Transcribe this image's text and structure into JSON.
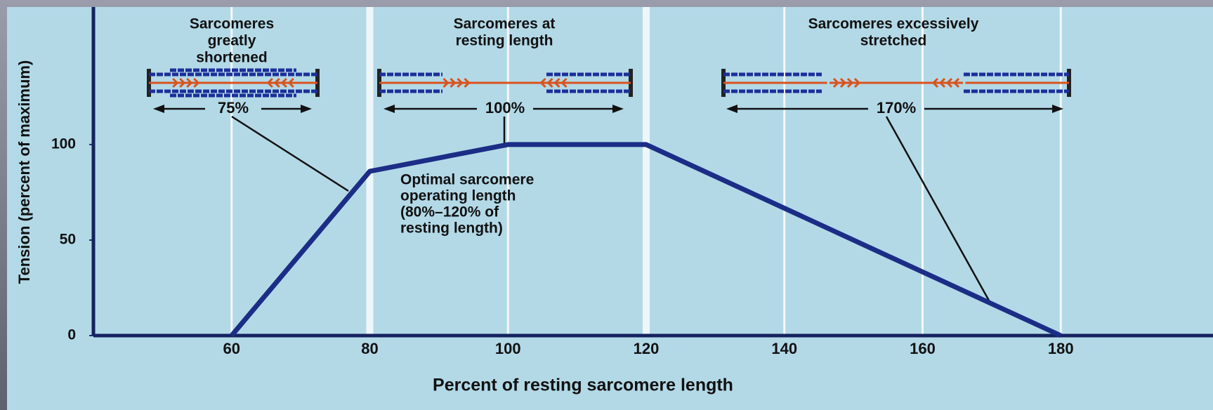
{
  "chart_data": {
    "type": "line",
    "x_label": "Percent of resting sarcomere length",
    "y_label": "Tension (percent of maximum)",
    "x": [
      60,
      80,
      100,
      120,
      180
    ],
    "values": [
      0,
      86,
      100,
      100,
      0
    ],
    "color": "#1b2d86",
    "xlim": [
      40,
      200
    ],
    "xticks": [
      60,
      80,
      100,
      120,
      140,
      160,
      180
    ],
    "ylim": [
      0,
      172
    ],
    "yticks": [
      0,
      50,
      100
    ],
    "grid": true,
    "panels": [
      {
        "title": [
          "Sarcomeres",
          "greatly",
          "shortened"
        ],
        "label": "75%"
      },
      {
        "title": [
          "Sarcomeres at",
          "resting length"
        ],
        "label": "100%"
      },
      {
        "title": [
          "Sarcomeres excessively",
          "stretched"
        ],
        "label": "170%"
      }
    ],
    "note": [
      "Optimal sarcomere",
      "operating length",
      "(80%–120% of",
      "resting length)"
    ]
  }
}
